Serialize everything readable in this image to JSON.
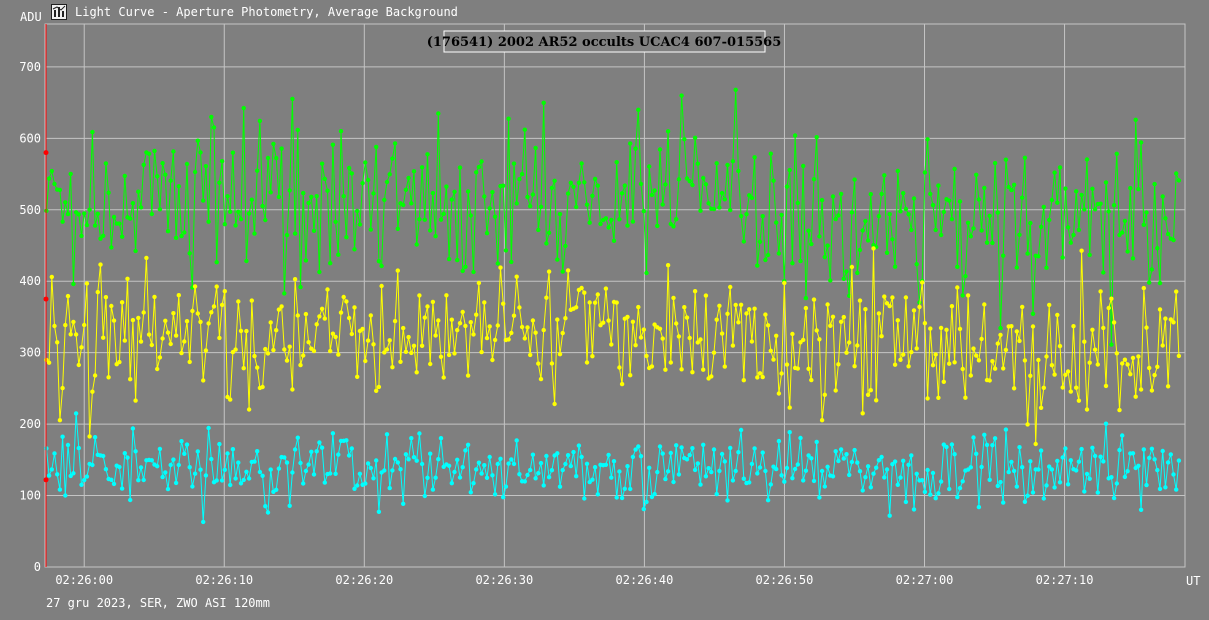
{
  "window": {
    "title": "Light Curve - Aperture Photometry, Average Background",
    "icon": "light-curve-app-icon"
  },
  "footer": {
    "note": "27 gru 2023, SER, ZWO ASI 120mm"
  },
  "colors": {
    "background": "#7f7f7f",
    "grid": "#c4c4c4",
    "target": "#ffff00",
    "comparison": "#00ff00",
    "background_series": "#00ffff",
    "marker_line": "#ff0000"
  },
  "chart_data": {
    "type": "line",
    "title": "(176541) 2002 AR52 occults UCAC4 607-015565",
    "ylabel": "ADU",
    "xlabel": "UT",
    "ylim": [
      0,
      760
    ],
    "xlim": [
      -2.8,
      78.6
    ],
    "x_unit": "seconds after 02:26:00 UT",
    "yticks": [
      0,
      100,
      200,
      300,
      400,
      500,
      600,
      700
    ],
    "xticks": [
      {
        "x": 0,
        "label": "02:26:00"
      },
      {
        "x": 10,
        "label": "02:26:10"
      },
      {
        "x": 20,
        "label": "02:26:20"
      },
      {
        "x": 30,
        "label": "02:26:30"
      },
      {
        "x": 40,
        "label": "02:26:40"
      },
      {
        "x": 50,
        "label": "02:26:50"
      },
      {
        "x": 60,
        "label": "02:27:00"
      },
      {
        "x": 70,
        "label": "02:27:10"
      }
    ],
    "grid": true,
    "point_count": 420,
    "x_start": -2.7,
    "x_step": 0.193,
    "series": [
      {
        "color": "#00ff00",
        "mean": 490,
        "sd": 58,
        "knots": [
          [
            -2.7,
            500
          ],
          [
            5,
            510
          ],
          [
            12,
            530
          ],
          [
            20,
            505
          ],
          [
            28,
            515
          ],
          [
            35,
            520
          ],
          [
            45,
            540
          ],
          [
            52,
            470
          ],
          [
            60,
            500
          ],
          [
            68,
            480
          ],
          [
            78.5,
            470
          ]
        ],
        "marker_y": 580,
        "values_note": "comparison star flux, roughly 330–705 ADU"
      },
      {
        "color": "#ffff00",
        "mean": 320,
        "sd": 45,
        "knots": [
          [
            -2.7,
            320
          ],
          [
            3,
            330
          ],
          [
            8,
            330
          ],
          [
            15,
            315
          ],
          [
            22,
            325
          ],
          [
            30,
            350
          ],
          [
            38,
            320
          ],
          [
            45,
            330
          ],
          [
            50,
            300
          ],
          [
            56,
            320
          ],
          [
            62,
            310
          ],
          [
            70,
            310
          ],
          [
            78.5,
            300
          ]
        ],
        "marker_y": 375,
        "values_note": "target star flux, roughly 160–450 ADU"
      },
      {
        "color": "#00ffff",
        "mean": 140,
        "sd": 26,
        "knots": [
          [
            -2.7,
            140
          ],
          [
            78.5,
            140
          ]
        ],
        "marker_y": 122,
        "values_note": "background level, roughly 35–215 ADU"
      }
    ]
  }
}
